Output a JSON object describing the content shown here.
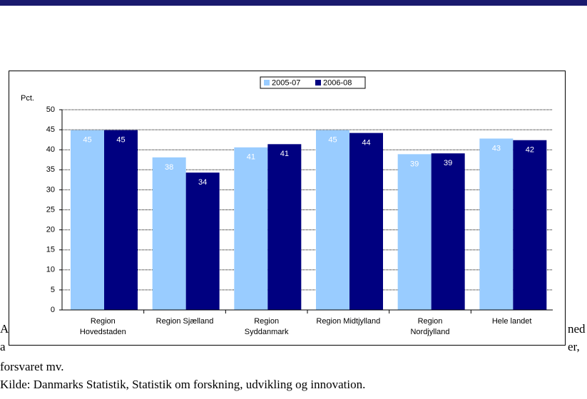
{
  "chart_data": {
    "type": "bar",
    "y_label": "Pct.",
    "categories": [
      "Region Hovedstaden",
      "Region Sjælland",
      "Region Syddanmark",
      "Region Midtjylland",
      "Region Nordjylland",
      "Hele landet"
    ],
    "series": [
      {
        "name": "2005-07",
        "color": "#99ccff",
        "values": [
          44.9,
          38.1,
          40.6,
          44.9,
          38.9,
          42.8
        ],
        "value_labels": [
          "45",
          "38",
          "41",
          "45",
          "39",
          "43"
        ]
      },
      {
        "name": "2006-08",
        "color": "#000080",
        "values": [
          44.9,
          34.3,
          41.4,
          44.2,
          39.1,
          42.4
        ],
        "value_labels": [
          "45",
          "34",
          "41",
          "44",
          "39",
          "42"
        ]
      }
    ],
    "ylim": [
      0,
      50
    ],
    "yticks": [
      0,
      5,
      10,
      15,
      20,
      25,
      30,
      35,
      40,
      45,
      50
    ],
    "grid": true,
    "legend": "top"
  },
  "document": {
    "fragments": [
      "A",
      "ned",
      "a",
      "er,"
    ],
    "lines": [
      "forsvaret mv.",
      "Kilde: Danmarks Statistik, Statistik om forskning, udvikling og innovation."
    ]
  }
}
